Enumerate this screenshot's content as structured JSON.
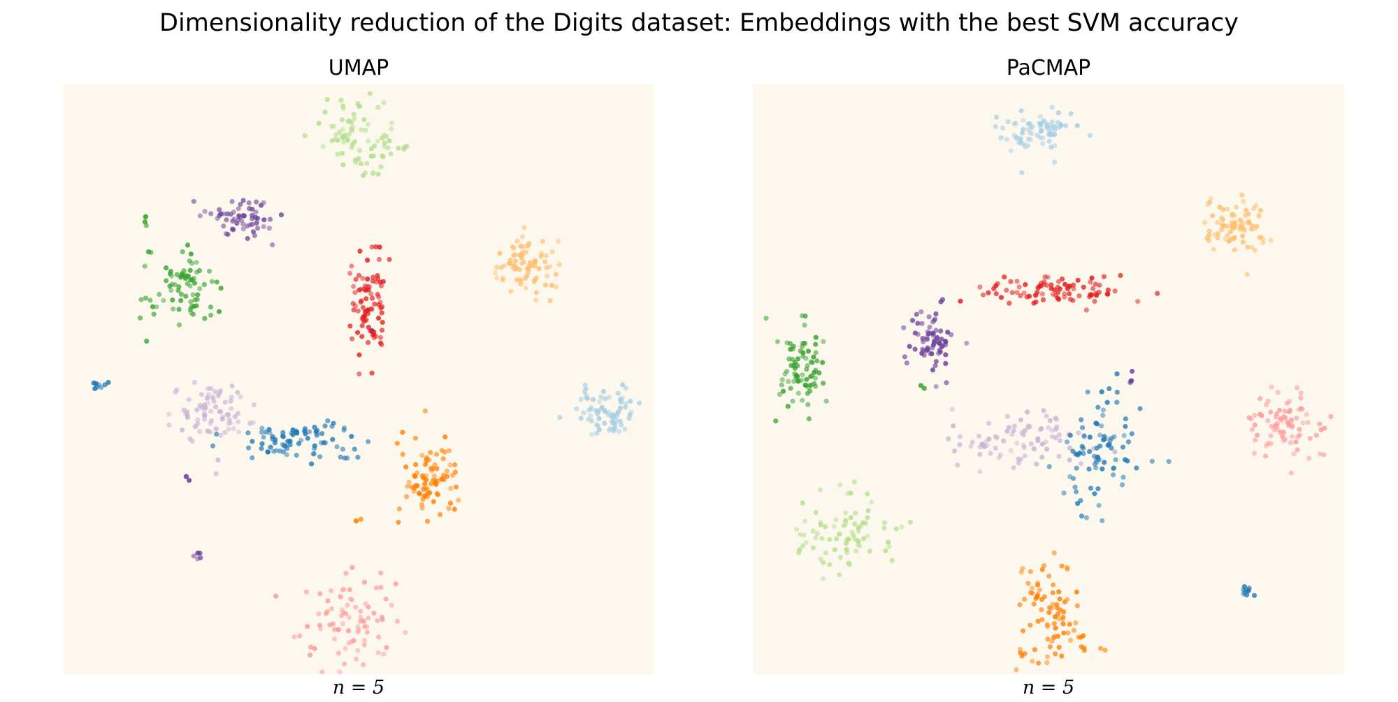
{
  "figure": {
    "title": "Dimensionality reduction of the Digits dataset: Embeddings with the best SVM accuracy"
  },
  "chart_data": [
    {
      "type": "scatter",
      "title": "UMAP",
      "xlabel": "n = 5",
      "ylabel": "",
      "axes_visible": false,
      "grid": false,
      "background": "#fdf8ee",
      "xlim": [
        0,
        100
      ],
      "ylim": [
        0,
        100
      ],
      "series": [
        {
          "name": "light-green",
          "color": "#b2df8a",
          "clusters": [
            {
              "x": 50,
              "y": 91,
              "sx": 4.0,
              "sy": 3.0,
              "n": 80
            },
            {
              "x": 52.5,
              "y": 85,
              "sx": 0.4,
              "sy": 0.4,
              "n": 3
            }
          ]
        },
        {
          "name": "purple",
          "color": "#6a3d9a",
          "clusters": [
            {
              "x": 30,
              "y": 77,
              "sx": 2.5,
              "sy": 2.2,
              "n": 60
            },
            {
              "x": 21,
              "y": 33,
              "sx": 0.3,
              "sy": 0.3,
              "n": 3
            },
            {
              "x": 23,
              "y": 20,
              "sx": 0.4,
              "sy": 0.4,
              "n": 5
            },
            {
              "x": 52.5,
              "y": 58,
              "sx": 0.3,
              "sy": 0.3,
              "n": 2
            }
          ]
        },
        {
          "name": "dark-green",
          "color": "#33a02c",
          "clusters": [
            {
              "x": 20,
              "y": 65,
              "sx": 3.0,
              "sy": 3.0,
              "n": 75
            },
            {
              "x": 14,
              "y": 76,
              "sx": 0.4,
              "sy": 0.8,
              "n": 4
            }
          ]
        },
        {
          "name": "red",
          "color": "#e31a1c",
          "clusters": [
            {
              "x": 51.5,
              "y": 62,
              "sx": 1.7,
              "sy": 4.8,
              "n": 85
            }
          ]
        },
        {
          "name": "light-orange",
          "color": "#fdbf6f",
          "clusters": [
            {
              "x": 78.5,
              "y": 69,
              "sx": 2.4,
              "sy": 2.6,
              "n": 80
            }
          ]
        },
        {
          "name": "dark-blue",
          "color": "#1f78b4",
          "clusters": [
            {
              "x": 40,
              "y": 39.5,
              "sx": 5.8,
              "sy": 1.6,
              "n": 85
            },
            {
              "x": 6,
              "y": 49,
              "sx": 1.0,
              "sy": 0.4,
              "n": 9
            }
          ]
        },
        {
          "name": "lavender",
          "color": "#cab2d6",
          "clusters": [
            {
              "x": 25,
              "y": 44,
              "sx": 3.5,
              "sy": 3.0,
              "n": 75
            }
          ]
        },
        {
          "name": "light-blue",
          "color": "#a6cee3",
          "clusters": [
            {
              "x": 92,
              "y": 44.5,
              "sx": 2.5,
              "sy": 2.3,
              "n": 75
            }
          ]
        },
        {
          "name": "orange",
          "color": "#ff7f00",
          "clusters": [
            {
              "x": 62,
              "y": 33.5,
              "sx": 2.2,
              "sy": 3.4,
              "n": 85
            },
            {
              "x": 50,
              "y": 26,
              "sx": 0.3,
              "sy": 0.3,
              "n": 3
            }
          ]
        },
        {
          "name": "pink",
          "color": "#fb9a99",
          "clusters": [
            {
              "x": 48,
              "y": 9,
              "sx": 4.0,
              "sy": 4.0,
              "n": 85
            }
          ]
        }
      ]
    },
    {
      "type": "scatter",
      "title": "PaCMAP",
      "xlabel": "n = 5",
      "ylabel": "",
      "axes_visible": false,
      "grid": false,
      "background": "#fdf8ee",
      "xlim": [
        0,
        100
      ],
      "ylim": [
        0,
        100
      ],
      "series": [
        {
          "name": "light-blue",
          "color": "#a6cee3",
          "clusters": [
            {
              "x": 47.5,
              "y": 92,
              "sx": 3.2,
              "sy": 1.8,
              "n": 75
            }
          ]
        },
        {
          "name": "light-orange",
          "color": "#fdbf6f",
          "clusters": [
            {
              "x": 81.5,
              "y": 76,
              "sx": 2.6,
              "sy": 2.3,
              "n": 80
            }
          ]
        },
        {
          "name": "red",
          "color": "#e31a1c",
          "clusters": [
            {
              "x": 51,
              "y": 65,
              "sx": 6.5,
              "sy": 1.1,
              "n": 85
            }
          ]
        },
        {
          "name": "purple",
          "color": "#6a3d9a",
          "clusters": [
            {
              "x": 30.5,
              "y": 57,
              "sx": 1.8,
              "sy": 2.8,
              "n": 70
            },
            {
              "x": 64,
              "y": 50,
              "sx": 0.3,
              "sy": 0.6,
              "n": 4
            }
          ]
        },
        {
          "name": "dark-green",
          "color": "#33a02c",
          "clusters": [
            {
              "x": 8,
              "y": 52,
              "sx": 2.0,
              "sy": 4.3,
              "n": 80
            },
            {
              "x": 29,
              "y": 49,
              "sx": 0.3,
              "sy": 0.6,
              "n": 3
            }
          ]
        },
        {
          "name": "lavender",
          "color": "#cab2d6",
          "clusters": [
            {
              "x": 45,
              "y": 39.5,
              "sx": 5.5,
              "sy": 2.6,
              "n": 85
            }
          ]
        },
        {
          "name": "dark-blue",
          "color": "#1f78b4",
          "clusters": [
            {
              "x": 59,
              "y": 38,
              "sx": 3.5,
              "sy": 5.0,
              "n": 85
            },
            {
              "x": 83.5,
              "y": 14,
              "sx": 0.6,
              "sy": 0.5,
              "n": 10
            }
          ]
        },
        {
          "name": "pink",
          "color": "#fb9a99",
          "clusters": [
            {
              "x": 90,
              "y": 42,
              "sx": 3.3,
              "sy": 2.8,
              "n": 80
            }
          ]
        },
        {
          "name": "light-green",
          "color": "#b2df8a",
          "clusters": [
            {
              "x": 15,
              "y": 23.5,
              "sx": 5.0,
              "sy": 3.5,
              "n": 80
            }
          ]
        },
        {
          "name": "orange",
          "color": "#ff7f00",
          "clusters": [
            {
              "x": 50,
              "y": 10,
              "sx": 2.8,
              "sy": 4.2,
              "n": 85
            },
            {
              "x": 57,
              "y": 4.5,
              "sx": 1.2,
              "sy": 0.4,
              "n": 5
            }
          ]
        }
      ]
    }
  ]
}
